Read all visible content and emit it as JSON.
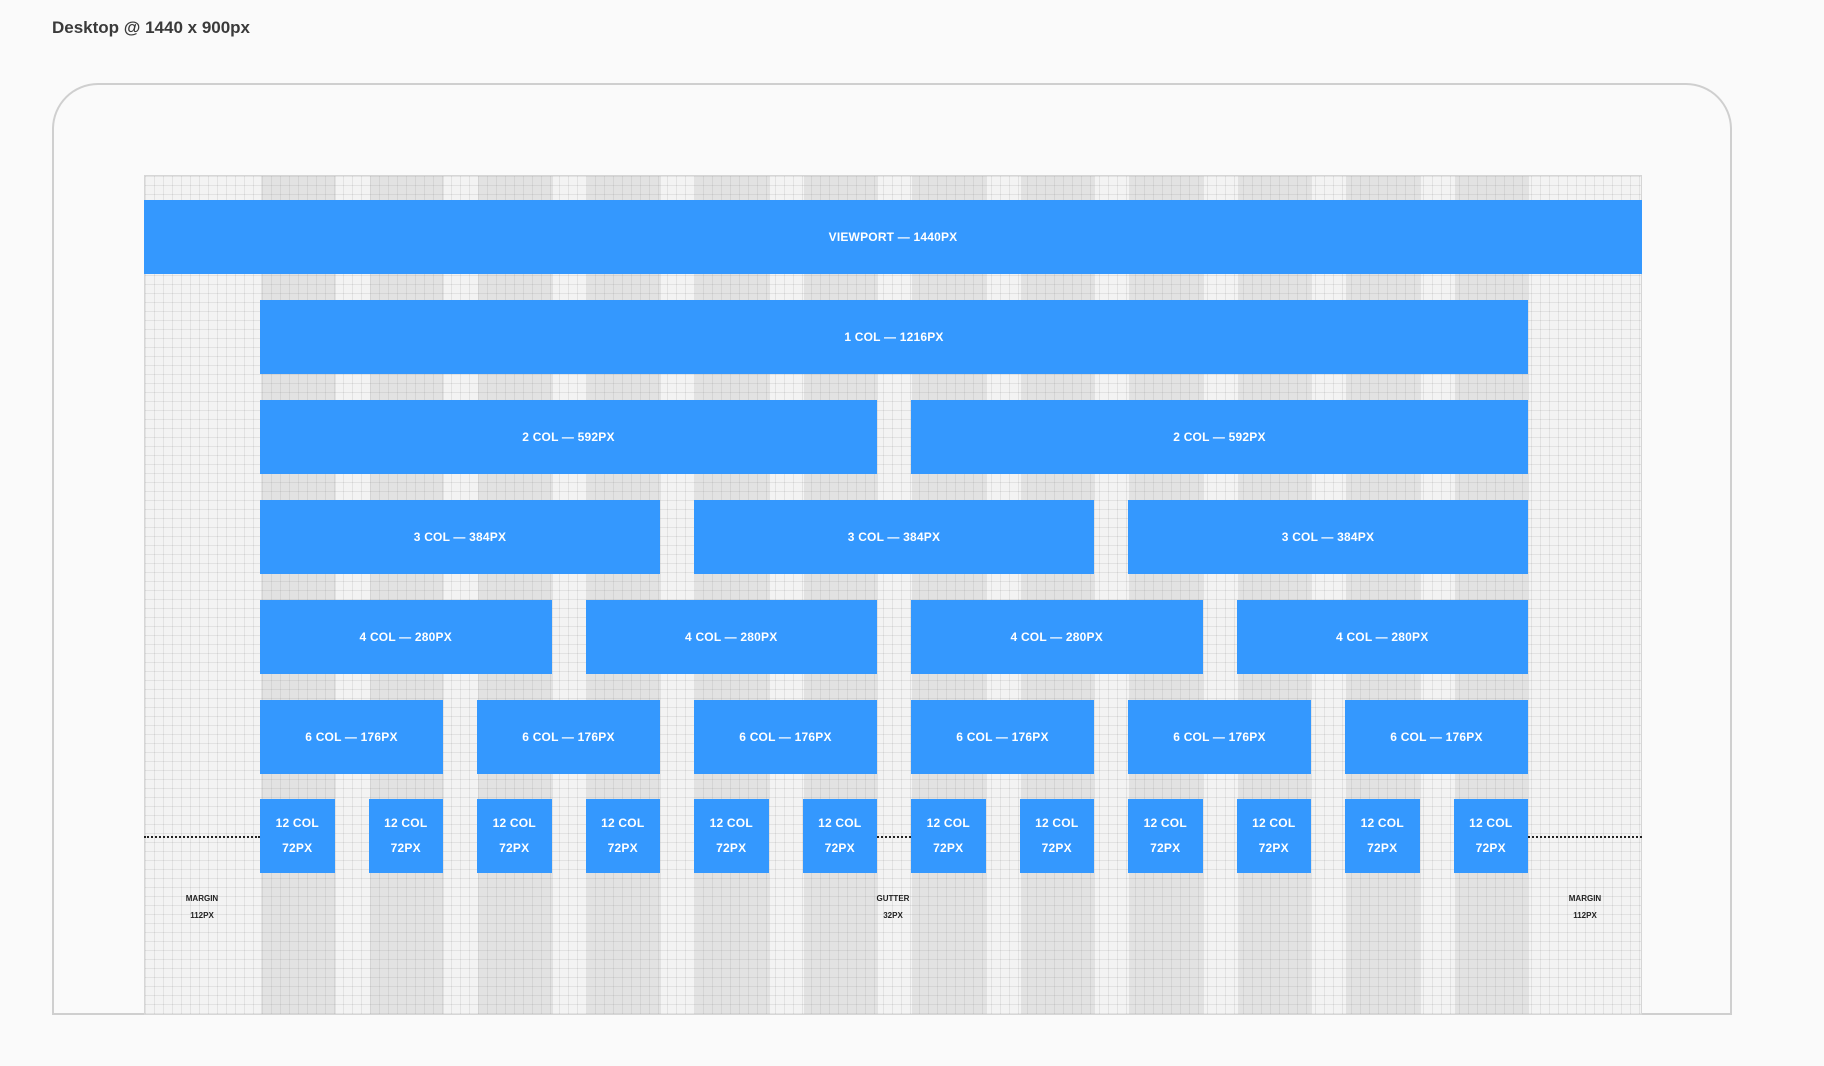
{
  "title": "Desktop @ 1440 x 900px",
  "colors": {
    "block": "#3498fe",
    "background": "#fafafa",
    "frame": "#cfcfcf"
  },
  "rows": {
    "viewport": [
      "VIEWPORT — 1440PX"
    ],
    "col1": [
      "1 COL — 1216PX"
    ],
    "col2": [
      "2 COL — 592PX",
      "2 COL — 592PX"
    ],
    "col3": [
      "3 COL — 384PX",
      "3 COL — 384PX",
      "3 COL — 384PX"
    ],
    "col4": [
      "4 COL — 280PX",
      "4 COL — 280PX",
      "4 COL — 280PX",
      "4 COL — 280PX"
    ],
    "col6": [
      "6 COL — 176PX",
      "6 COL — 176PX",
      "6 COL — 176PX",
      "6 COL — 176PX",
      "6 COL — 176PX",
      "6 COL — 176PX"
    ],
    "col12": [
      {
        "line1": "12 COL",
        "line2": "72PX"
      },
      {
        "line1": "12 COL",
        "line2": "72PX"
      },
      {
        "line1": "12 COL",
        "line2": "72PX"
      },
      {
        "line1": "12 COL",
        "line2": "72PX"
      },
      {
        "line1": "12 COL",
        "line2": "72PX"
      },
      {
        "line1": "12 COL",
        "line2": "72PX"
      },
      {
        "line1": "12 COL",
        "line2": "72PX"
      },
      {
        "line1": "12 COL",
        "line2": "72PX"
      },
      {
        "line1": "12 COL",
        "line2": "72PX"
      },
      {
        "line1": "12 COL",
        "line2": "72PX"
      },
      {
        "line1": "12 COL",
        "line2": "72PX"
      },
      {
        "line1": "12 COL",
        "line2": "72PX"
      }
    ]
  },
  "annotations": {
    "margin_left": {
      "label": "MARGIN",
      "value": "112PX"
    },
    "gutter": {
      "label": "GUTTER",
      "value": "32PX"
    },
    "margin_right": {
      "label": "MARGIN",
      "value": "112PX"
    }
  }
}
